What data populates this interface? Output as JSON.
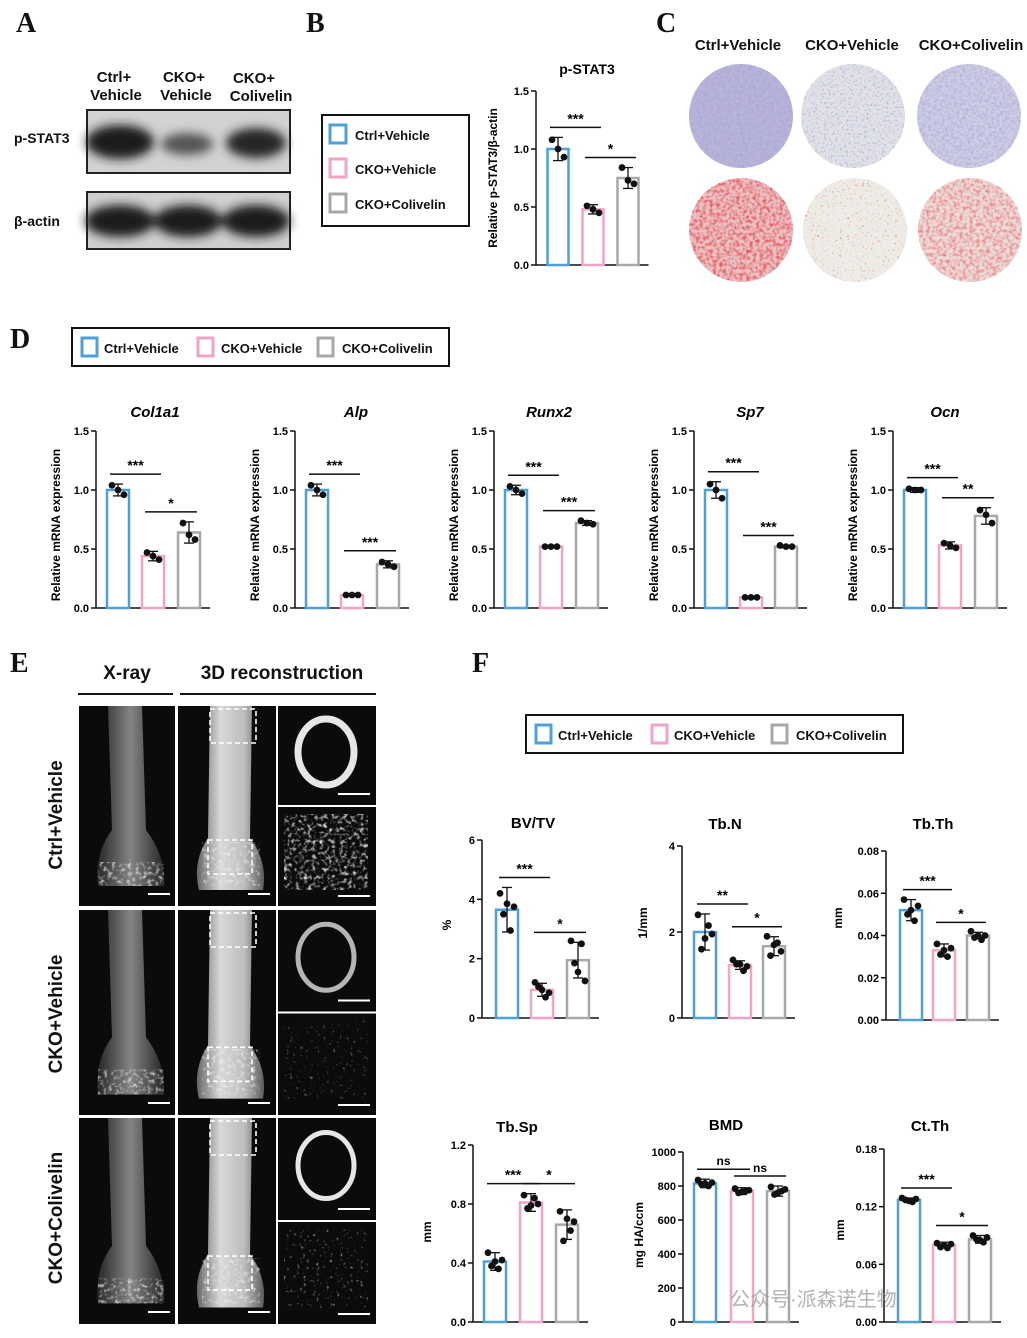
{
  "panels": {
    "A": "A",
    "B": "B",
    "C": "C",
    "D": "D",
    "E": "E",
    "F": "F"
  },
  "groups": [
    "Ctrl+Vehicle",
    "CKO+Vehicle",
    "CKO+Colivelin"
  ],
  "colors": {
    "ctrl": "#4f9fd9",
    "cko": "#f0a4c8",
    "col": "#a8a8a8"
  },
  "blot": {
    "columns": [
      [
        "Ctrl+",
        "Vehicle"
      ],
      [
        "CKO+",
        "Vehicle"
      ],
      [
        "CKO+",
        "Colivelin"
      ]
    ],
    "rows": [
      "p-STAT3",
      "β-actin"
    ]
  },
  "panel_c": {
    "columns": [
      "Ctrl+Vehicle",
      "CKO+Vehicle",
      "CKO+Colivelin"
    ]
  },
  "panel_e": {
    "header_xray": "X-ray",
    "header_3d": "3D reconstruction",
    "rows": [
      "Ctrl+Vehicle",
      "CKO+Vehicle",
      "CKO+Colivelin"
    ]
  },
  "watermark": "公众号·派森诺生物",
  "chart_data": [
    {
      "id": "B",
      "type": "bar",
      "title": "p-STAT3",
      "ylabel": "Relative p-STAT3/β-actin",
      "categories": [
        "Ctrl+Vehicle",
        "CKO+Vehicle",
        "CKO+Colivelin"
      ],
      "values": [
        1.0,
        0.48,
        0.75
      ],
      "errors": [
        0.1,
        0.04,
        0.09
      ],
      "points": [
        [
          1.08,
          0.93,
          1.0
        ],
        [
          0.51,
          0.45,
          0.48
        ],
        [
          0.84,
          0.7,
          0.73
        ]
      ],
      "ylim": [
        0,
        1.5
      ],
      "yticks": [
        "0.0",
        "0.5",
        "1.0",
        "1.5"
      ],
      "sig": [
        {
          "from": 0,
          "to": 1,
          "label": "***"
        },
        {
          "from": 1,
          "to": 2,
          "label": "*"
        }
      ]
    },
    {
      "id": "D1",
      "type": "bar",
      "title": "Col1a1",
      "ylabel": "Relative mRNA expression",
      "categories": [
        "Ctrl+Vehicle",
        "CKO+Vehicle",
        "CKO+Colivelin"
      ],
      "values": [
        1.0,
        0.44,
        0.64
      ],
      "errors": [
        0.05,
        0.04,
        0.09
      ],
      "points": [
        [
          1.04,
          0.96,
          1.0
        ],
        [
          0.47,
          0.41,
          0.44
        ],
        [
          0.72,
          0.58,
          0.62
        ]
      ],
      "ylim": [
        0,
        1.5
      ],
      "yticks": [
        "0.0",
        "0.5",
        "1.0",
        "1.5"
      ],
      "sig": [
        {
          "from": 0,
          "to": 1,
          "label": "***"
        },
        {
          "from": 1,
          "to": 2,
          "label": "*"
        }
      ]
    },
    {
      "id": "D2",
      "type": "bar",
      "title": "Alp",
      "ylabel": "Relative mRNA expression",
      "categories": [
        "Ctrl+Vehicle",
        "CKO+Vehicle",
        "CKO+Colivelin"
      ],
      "values": [
        1.0,
        0.11,
        0.37
      ],
      "errors": [
        0.05,
        0.01,
        0.03
      ],
      "points": [
        [
          1.04,
          0.96,
          1.0
        ],
        [
          0.11,
          0.11,
          0.11
        ],
        [
          0.39,
          0.35,
          0.37
        ]
      ],
      "ylim": [
        0,
        1.5
      ],
      "yticks": [
        "0.0",
        "0.5",
        "1.0",
        "1.5"
      ],
      "sig": [
        {
          "from": 0,
          "to": 1,
          "label": "***"
        },
        {
          "from": 1,
          "to": 2,
          "label": "***"
        }
      ]
    },
    {
      "id": "D3",
      "type": "bar",
      "title": "Runx2",
      "ylabel": "Relative mRNA expression",
      "categories": [
        "Ctrl+Vehicle",
        "CKO+Vehicle",
        "CKO+Colivelin"
      ],
      "values": [
        1.0,
        0.52,
        0.72
      ],
      "errors": [
        0.04,
        0.01,
        0.02
      ],
      "points": [
        [
          1.03,
          0.97,
          1.0
        ],
        [
          0.52,
          0.52,
          0.52
        ],
        [
          0.74,
          0.71,
          0.72
        ]
      ],
      "ylim": [
        0,
        1.5
      ],
      "yticks": [
        "0.0",
        "0.5",
        "1.0",
        "1.5"
      ],
      "sig": [
        {
          "from": 0,
          "to": 1,
          "label": "***"
        },
        {
          "from": 1,
          "to": 2,
          "label": "***"
        }
      ]
    },
    {
      "id": "D4",
      "type": "bar",
      "title": "Sp7",
      "ylabel": "Relative mRNA expression",
      "categories": [
        "Ctrl+Vehicle",
        "CKO+Vehicle",
        "CKO+Colivelin"
      ],
      "values": [
        1.0,
        0.09,
        0.52
      ],
      "errors": [
        0.07,
        0.01,
        0.01
      ],
      "points": [
        [
          1.05,
          0.93,
          1.0
        ],
        [
          0.09,
          0.09,
          0.09
        ],
        [
          0.53,
          0.52,
          0.52
        ]
      ],
      "ylim": [
        0,
        1.5
      ],
      "yticks": [
        "0.0",
        "0.5",
        "1.0",
        "1.5"
      ],
      "sig": [
        {
          "from": 0,
          "to": 1,
          "label": "***"
        },
        {
          "from": 1,
          "to": 2,
          "label": "***"
        }
      ]
    },
    {
      "id": "D5",
      "type": "bar",
      "title": "Ocn",
      "ylabel": "Relative mRNA expression",
      "categories": [
        "Ctrl+Vehicle",
        "CKO+Vehicle",
        "CKO+Colivelin"
      ],
      "values": [
        1.0,
        0.53,
        0.78
      ],
      "errors": [
        0.02,
        0.03,
        0.07
      ],
      "points": [
        [
          1.01,
          1.0,
          1.0
        ],
        [
          0.55,
          0.51,
          0.53
        ],
        [
          0.83,
          0.72,
          0.79
        ]
      ],
      "ylim": [
        0,
        1.5
      ],
      "yticks": [
        "0.0",
        "0.5",
        "1.0",
        "1.5"
      ],
      "sig": [
        {
          "from": 0,
          "to": 1,
          "label": "***"
        },
        {
          "from": 1,
          "to": 2,
          "label": "**"
        }
      ]
    },
    {
      "id": "F1",
      "type": "bar",
      "title": "BV/TV",
      "ylabel": "%",
      "categories": [
        "Ctrl+Vehicle",
        "CKO+Vehicle",
        "CKO+Colivelin"
      ],
      "values": [
        3.65,
        0.95,
        1.95
      ],
      "errors": [
        0.75,
        0.22,
        0.6
      ],
      "points": [
        [
          4.2,
          3.75,
          3.5,
          2.95,
          3.85
        ],
        [
          1.2,
          0.85,
          1.05,
          0.7,
          0.95
        ],
        [
          2.6,
          1.25,
          1.85,
          2.5,
          1.55
        ]
      ],
      "ylim": [
        0,
        6
      ],
      "yticks": [
        "0",
        "2",
        "4",
        "6"
      ],
      "sig": [
        {
          "from": 0,
          "to": 1,
          "label": "***"
        },
        {
          "from": 1,
          "to": 2,
          "label": "*"
        }
      ]
    },
    {
      "id": "F2",
      "type": "bar",
      "title": "Tb.N",
      "ylabel": "1/mm",
      "categories": [
        "Ctrl+Vehicle",
        "CKO+Vehicle",
        "CKO+Colivelin"
      ],
      "values": [
        2.0,
        1.23,
        1.67
      ],
      "errors": [
        0.42,
        0.1,
        0.22
      ],
      "points": [
        [
          2.4,
          1.95,
          1.6,
          2.15,
          1.85
        ],
        [
          1.35,
          1.2,
          1.25,
          1.1,
          1.25
        ],
        [
          1.9,
          1.55,
          1.45,
          1.75,
          1.7
        ]
      ],
      "ylim": [
        0,
        4
      ],
      "yticks": [
        "0",
        "2",
        "4"
      ],
      "sig": [
        {
          "from": 0,
          "to": 1,
          "label": "**"
        },
        {
          "from": 1,
          "to": 2,
          "label": "*"
        }
      ]
    },
    {
      "id": "F3",
      "type": "bar",
      "title": "Tb.Th",
      "ylabel": "mm",
      "categories": [
        "Ctrl+Vehicle",
        "CKO+Vehicle",
        "CKO+Colivelin"
      ],
      "values": [
        0.052,
        0.033,
        0.04
      ],
      "errors": [
        0.005,
        0.003,
        0.0015
      ],
      "points": [
        [
          0.057,
          0.054,
          0.05,
          0.047,
          0.052
        ],
        [
          0.036,
          0.034,
          0.031,
          0.03,
          0.033
        ],
        [
          0.042,
          0.04,
          0.039,
          0.038,
          0.04
        ]
      ],
      "ylim": [
        0,
        0.08
      ],
      "yticks": [
        "0.00",
        "0.02",
        "0.04",
        "0.06",
        "0.08"
      ],
      "sig": [
        {
          "from": 0,
          "to": 1,
          "label": "***"
        },
        {
          "from": 1,
          "to": 2,
          "label": "*"
        }
      ]
    },
    {
      "id": "F4",
      "type": "bar",
      "title": "Tb.Sp",
      "ylabel": "mm",
      "categories": [
        "Ctrl+Vehicle",
        "CKO+Vehicle",
        "CKO+Colivelin"
      ],
      "values": [
        0.41,
        0.81,
        0.66
      ],
      "errors": [
        0.06,
        0.06,
        0.1
      ],
      "points": [
        [
          0.47,
          0.42,
          0.38,
          0.36,
          0.41
        ],
        [
          0.86,
          0.8,
          0.77,
          0.84,
          0.79
        ],
        [
          0.75,
          0.68,
          0.55,
          0.62,
          0.7
        ]
      ],
      "ylim": [
        0,
        1.2
      ],
      "yticks": [
        "0.0",
        "0.4",
        "0.8",
        "1.2"
      ],
      "sig": [
        {
          "from": 0,
          "to": 1,
          "label": "***"
        },
        {
          "from": 1,
          "to": 2,
          "label": "*"
        }
      ]
    },
    {
      "id": "F5",
      "type": "bar",
      "title": "BMD",
      "ylabel": "mg HA/ccm",
      "categories": [
        "Ctrl+Vehicle",
        "CKO+Vehicle",
        "CKO+Colivelin"
      ],
      "values": [
        815,
        770,
        770
      ],
      "errors": [
        25,
        20,
        30
      ],
      "points": [
        [
          835,
          820,
          810,
          800,
          815
        ],
        [
          785,
          775,
          760,
          770,
          765
        ],
        [
          795,
          780,
          750,
          770,
          760
        ]
      ],
      "ylim": [
        0,
        1000
      ],
      "yticks": [
        "0",
        "200",
        "400",
        "600",
        "800",
        "1000"
      ],
      "sig": [
        {
          "from": 0,
          "to": 1,
          "label": "ns"
        },
        {
          "from": 1,
          "to": 2,
          "label": "ns"
        }
      ]
    },
    {
      "id": "F6",
      "type": "bar",
      "title": "Ct.Th",
      "ylabel": "mm",
      "categories": [
        "Ctrl+Vehicle",
        "CKO+Vehicle",
        "CKO+Colivelin"
      ],
      "values": [
        0.127,
        0.08,
        0.086
      ],
      "errors": [
        0.002,
        0.003,
        0.004
      ],
      "points": [
        [
          0.129,
          0.128,
          0.127,
          0.125,
          0.126
        ],
        [
          0.082,
          0.081,
          0.078,
          0.077,
          0.08
        ],
        [
          0.09,
          0.088,
          0.086,
          0.083,
          0.085
        ]
      ],
      "ylim": [
        0,
        0.18
      ],
      "yticks": [
        "0.00",
        "0.06",
        "0.12",
        "0.18"
      ],
      "sig": [
        {
          "from": 0,
          "to": 1,
          "label": "***"
        },
        {
          "from": 1,
          "to": 2,
          "label": "*"
        }
      ]
    }
  ]
}
